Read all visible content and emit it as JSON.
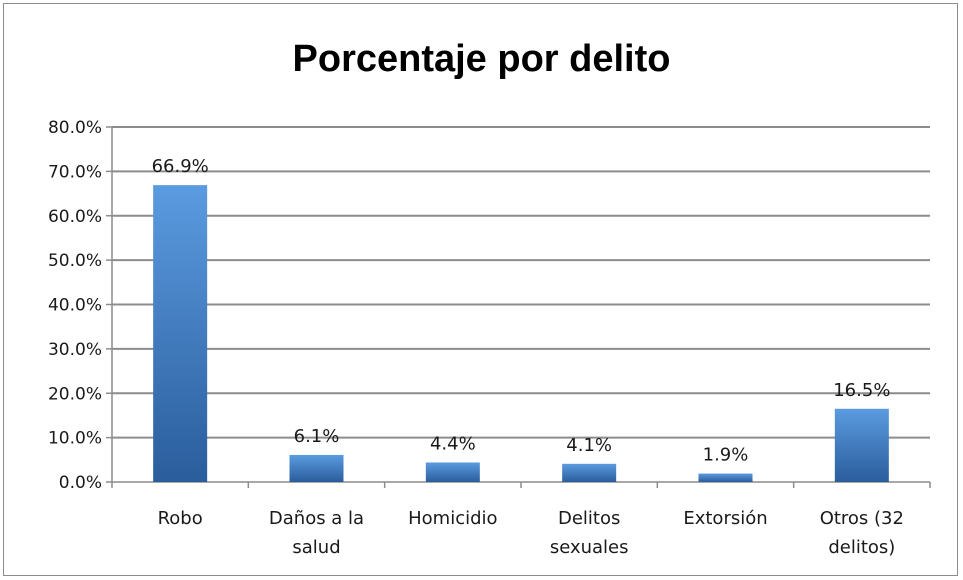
{
  "chart_data": {
    "type": "bar",
    "title": "Porcentaje por delito",
    "categories": [
      [
        "Robo"
      ],
      [
        "Daños a la",
        "salud"
      ],
      [
        "Homicidio"
      ],
      [
        "Delitos",
        "sexuales"
      ],
      [
        "Extorsión"
      ],
      [
        "Otros (32",
        "delitos)"
      ]
    ],
    "values": [
      66.9,
      6.1,
      4.4,
      4.1,
      1.9,
      16.5
    ],
    "value_labels": [
      "66.9%",
      "6.1%",
      "4.4%",
      "4.1%",
      "1.9%",
      "16.5%"
    ],
    "y_ticks": [
      "0.0%",
      "10.0%",
      "20.0%",
      "30.0%",
      "40.0%",
      "50.0%",
      "60.0%",
      "70.0%",
      "80.0%"
    ],
    "ylim": [
      0,
      80
    ],
    "grid": true,
    "legend": "none",
    "bar_color_top": "#5b9be0",
    "bar_color_bottom": "#2a5d9c",
    "grid_color": "#8c8c8c"
  }
}
